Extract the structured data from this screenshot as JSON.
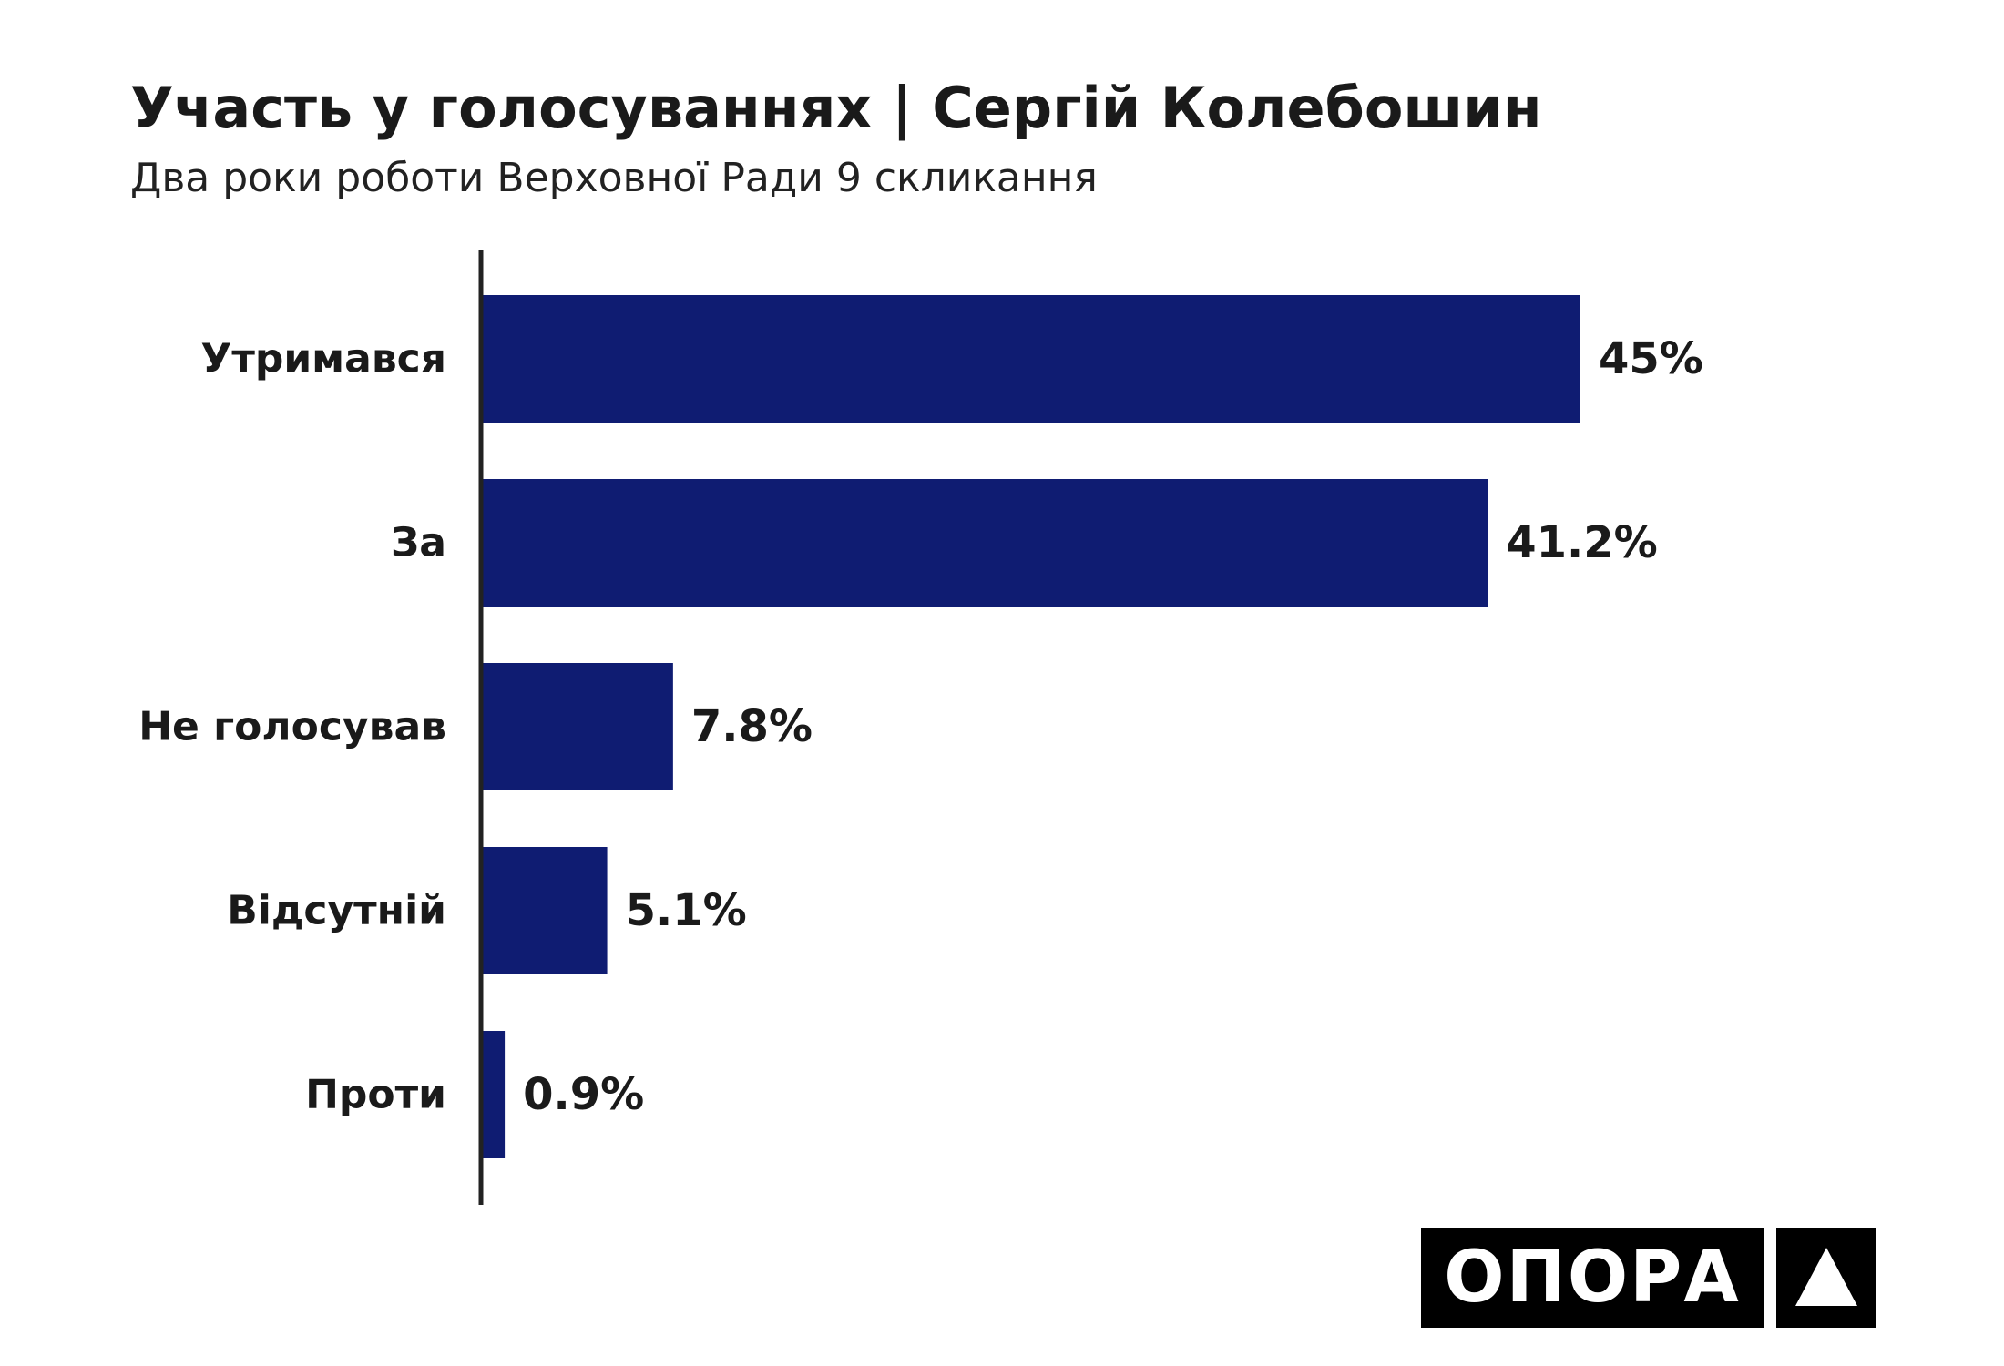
{
  "chart_data": {
    "type": "bar",
    "orientation": "horizontal",
    "title": "Участь у голосуваннях | Сергій Колебошин",
    "subtitle": "Два роки роботи Верховної Ради 9 скликання",
    "categories": [
      "Утримався",
      "За",
      "Не голосував",
      "Відсутній",
      "Проти"
    ],
    "values": [
      45,
      41.2,
      7.8,
      5.1,
      0.9
    ],
    "value_labels": [
      "45%",
      "41.2%",
      "7.8%",
      "5.1%",
      "0.9%"
    ],
    "xlabel": "",
    "ylabel": "",
    "xlim": [
      0,
      45
    ],
    "grid": false,
    "bar_color": "#0f1c72"
  },
  "logo": {
    "text": "ОПОРА",
    "icon": "triangle-logo-icon"
  }
}
